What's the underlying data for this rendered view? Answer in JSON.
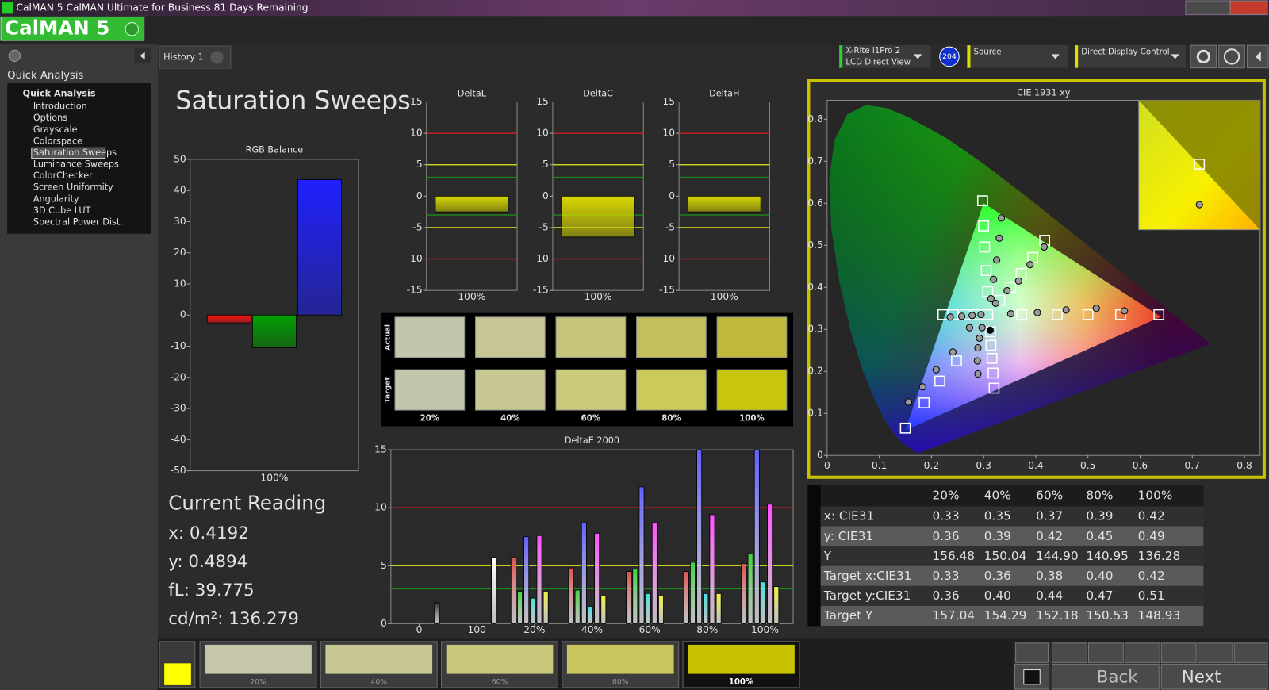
{
  "window_title": "CalMAN 5 CalMAN Ultimate for Business 81 Days Remaining",
  "logo": "CalMAN 5",
  "sidebar": {
    "heading": "Quick Analysis",
    "tree_title": "Quick Analysis",
    "items": [
      "Introduction",
      "Options",
      "Grayscale",
      "Colorspace",
      "Saturation Sweeps",
      "Luminance Sweeps",
      "ColorChecker",
      "Screen Uniformity",
      "Angularity",
      "3D Cube LUT",
      "Spectral Power Dist."
    ],
    "selected": 4
  },
  "tab": "History 1",
  "toolbar": {
    "meter_line1": "X-Rite i1Pro 2",
    "meter_line2": "LCD Direct View",
    "badge": "204",
    "source": "Source",
    "display_control": "Direct Display Control"
  },
  "page_title": "Saturation Sweeps",
  "current_reading": {
    "title": "Current Reading",
    "lines": [
      "x: 0.4192",
      "y: 0.4894",
      "fL: 39.775",
      "cd/m²: 136.279"
    ]
  },
  "chart_data": [
    {
      "type": "bar",
      "title": "RGB Balance",
      "categories": [
        "100%"
      ],
      "series": [
        {
          "color": "#ff1010",
          "values": [
            -2.5
          ]
        },
        {
          "color": "#00a000",
          "values": [
            -10.5
          ]
        },
        {
          "color": "#2020ff",
          "values": [
            43.5
          ]
        }
      ],
      "ylim": [
        -50,
        50
      ],
      "yticks": [
        -50,
        -40,
        -30,
        -20,
        -10,
        0,
        10,
        20,
        30,
        40,
        50
      ]
    },
    {
      "type": "bar",
      "title": "DeltaL",
      "categories": [
        "100%"
      ],
      "series": [
        {
          "color": "#d8d800",
          "values": [
            -2.5
          ]
        }
      ],
      "ylim": [
        -15,
        15
      ],
      "yticks": [
        -15,
        -10,
        -5,
        0,
        5,
        10,
        15
      ],
      "reference_lines": [
        {
          "value": 10,
          "color": "#e02020"
        },
        {
          "value": -10,
          "color": "#e02020"
        },
        {
          "value": 5,
          "color": "#e8e820"
        },
        {
          "value": -5,
          "color": "#e8e820"
        },
        {
          "value": 3,
          "color": "#1a8a1a"
        },
        {
          "value": -3,
          "color": "#1a8a1a"
        }
      ]
    },
    {
      "type": "bar",
      "title": "DeltaC",
      "categories": [
        "100%"
      ],
      "series": [
        {
          "color": "#d8d800",
          "values": [
            -6.5
          ]
        }
      ],
      "ylim": [
        -15,
        15
      ],
      "yticks": [
        -15,
        -10,
        -5,
        0,
        5,
        10,
        15
      ],
      "reference_lines": [
        {
          "value": 10,
          "color": "#e02020"
        },
        {
          "value": -10,
          "color": "#e02020"
        },
        {
          "value": 5,
          "color": "#e8e820"
        },
        {
          "value": -5,
          "color": "#e8e820"
        },
        {
          "value": 3,
          "color": "#1a8a1a"
        },
        {
          "value": -3,
          "color": "#1a8a1a"
        }
      ]
    },
    {
      "type": "bar",
      "title": "DeltaH",
      "categories": [
        "100%"
      ],
      "series": [
        {
          "color": "#d8d800",
          "values": [
            -2.5
          ]
        }
      ],
      "ylim": [
        -15,
        15
      ],
      "yticks": [
        -15,
        -10,
        -5,
        0,
        5,
        10,
        15
      ],
      "reference_lines": [
        {
          "value": 10,
          "color": "#e02020"
        },
        {
          "value": -10,
          "color": "#e02020"
        },
        {
          "value": 5,
          "color": "#e8e820"
        },
        {
          "value": -5,
          "color": "#e8e820"
        },
        {
          "value": 3,
          "color": "#1a8a1a"
        },
        {
          "value": -3,
          "color": "#1a8a1a"
        }
      ]
    },
    {
      "type": "bar",
      "title": "DeltaE 2000",
      "categories": [
        "0",
        "100",
        "20%",
        "40%",
        "60%",
        "80%",
        "100%"
      ],
      "series": [
        {
          "color": "#303030",
          "values": [
            1.8,
            null,
            null,
            null,
            null,
            null,
            null
          ]
        },
        {
          "color": "#ffffff",
          "values": [
            null,
            5.7,
            null,
            null,
            null,
            null,
            null
          ]
        },
        {
          "color": "#e05050",
          "values": [
            null,
            null,
            5.7,
            4.8,
            4.5,
            4.5,
            5.2
          ]
        },
        {
          "color": "#40d040",
          "values": [
            null,
            null,
            2.8,
            2.9,
            4.7,
            5.3,
            6.0
          ]
        },
        {
          "color": "#6060ff",
          "values": [
            null,
            null,
            7.5,
            8.7,
            11.8,
            15,
            15
          ]
        },
        {
          "color": "#40e0e0",
          "values": [
            null,
            null,
            2.2,
            1.5,
            2.6,
            2.6,
            3.6
          ]
        },
        {
          "color": "#ff50ff",
          "values": [
            null,
            null,
            7.6,
            7.8,
            8.7,
            9.4,
            10.3
          ]
        },
        {
          "color": "#f0f040",
          "values": [
            null,
            null,
            2.8,
            2.4,
            2.4,
            2.6,
            3.2
          ]
        }
      ],
      "ylim": [
        0,
        15
      ],
      "yticks": [
        0,
        5,
        10,
        15
      ],
      "reference_lines": [
        {
          "value": 10,
          "color": "#e02020"
        },
        {
          "value": 5,
          "color": "#e8e820"
        },
        {
          "value": 3,
          "color": "#1a8a1a"
        }
      ]
    },
    {
      "type": "scatter",
      "title": "CIE 1931 xy",
      "xlim": [
        0,
        0.83
      ],
      "ylim": [
        0,
        0.845
      ],
      "xticks": [
        0,
        0.1,
        0.2,
        0.3,
        0.4,
        0.5,
        0.6,
        0.7,
        0.8
      ],
      "yticks": [
        0,
        0.1,
        0.2,
        0.3,
        0.4,
        0.5,
        0.6,
        0.7,
        0.8
      ],
      "series": [
        {
          "marker": "square",
          "color": "#ffffff",
          "x": [
            0.308,
            0.373,
            0.441,
            0.5,
            0.5625,
            0.636,
            0.298,
            0.3,
            0.302,
            0.305,
            0.308,
            0.15,
            0.186,
            0.216,
            0.248,
            0.222,
            0.242,
            0.264,
            0.286,
            0.32,
            0.318,
            0.316,
            0.314,
            0.313,
            0.417,
            0.394,
            0.372,
            0.352,
            0.331
          ],
          "y": [
            0.335,
            0.335,
            0.335,
            0.335,
            0.335,
            0.335,
            0.606,
            0.546,
            0.496,
            0.44,
            0.39,
            0.065,
            0.125,
            0.177,
            0.225,
            0.335,
            0.335,
            0.335,
            0.335,
            0.16,
            0.196,
            0.231,
            0.262,
            0.294,
            0.512,
            0.471,
            0.433,
            0.4,
            0.369
          ]
        },
        {
          "marker": "circle",
          "color": "#9a9a9a",
          "x": [
            0.352,
            0.403,
            0.458,
            0.516,
            0.57,
            0.334,
            0.33,
            0.325,
            0.319,
            0.314,
            0.416,
            0.389,
            0.367,
            0.345,
            0.323,
            0.156,
            0.183,
            0.209,
            0.241,
            0.273,
            0.236,
            0.258,
            0.278,
            0.295,
            0.289,
            0.288,
            0.289,
            0.292,
            0.297
          ],
          "y": [
            0.337,
            0.34,
            0.346,
            0.35,
            0.344,
            0.565,
            0.517,
            0.465,
            0.419,
            0.373,
            0.496,
            0.454,
            0.415,
            0.392,
            0.362,
            0.127,
            0.163,
            0.204,
            0.246,
            0.304,
            0.329,
            0.331,
            0.333,
            0.335,
            0.194,
            0.225,
            0.256,
            0.279,
            0.304
          ]
        },
        {
          "marker": "circle",
          "color": "#000000",
          "x": [
            0.3125
          ],
          "y": [
            0.298
          ]
        }
      ]
    }
  ],
  "swatches": {
    "row_labels": [
      "Actual",
      "Target"
    ],
    "column_labels": [
      "20%",
      "40%",
      "60%",
      "80%",
      "100%"
    ],
    "actual_colors": [
      "#c2c6ad",
      "#c5c595",
      "#c6c37a",
      "#c4bf5e",
      "#c2b93c"
    ],
    "target_colors": [
      "#c3c6ab",
      "#c8c893",
      "#cccb7a",
      "#cbcb58",
      "#c9c60d"
    ]
  },
  "table": {
    "columns": [
      "20%",
      "40%",
      "60%",
      "80%",
      "100%"
    ],
    "rows": [
      {
        "label": "x: CIE31",
        "values": [
          "0.33",
          "0.35",
          "0.37",
          "0.39",
          "0.42"
        ]
      },
      {
        "label": "y: CIE31",
        "values": [
          "0.36",
          "0.39",
          "0.42",
          "0.45",
          "0.49"
        ]
      },
      {
        "label": "Y",
        "values": [
          "156.48",
          "150.04",
          "144.90",
          "140.95",
          "136.28"
        ]
      },
      {
        "label": "Target x:CIE31",
        "values": [
          "0.33",
          "0.36",
          "0.38",
          "0.40",
          "0.42"
        ]
      },
      {
        "label": "Target y:CIE31",
        "values": [
          "0.36",
          "0.40",
          "0.44",
          "0.47",
          "0.51"
        ]
      },
      {
        "label": "Target Y",
        "values": [
          "157.04",
          "154.29",
          "152.18",
          "150.53",
          "148.93"
        ]
      }
    ]
  },
  "sweep_strip": {
    "labels": [
      "20%",
      "40%",
      "60%",
      "80%",
      "100%"
    ],
    "colors": [
      "#c6c7a9",
      "#c8c894",
      "#c8c77a",
      "#c8c65c",
      "#c8c300"
    ],
    "selected": 4
  },
  "buttons": {
    "back": "Back",
    "next": "Next"
  }
}
